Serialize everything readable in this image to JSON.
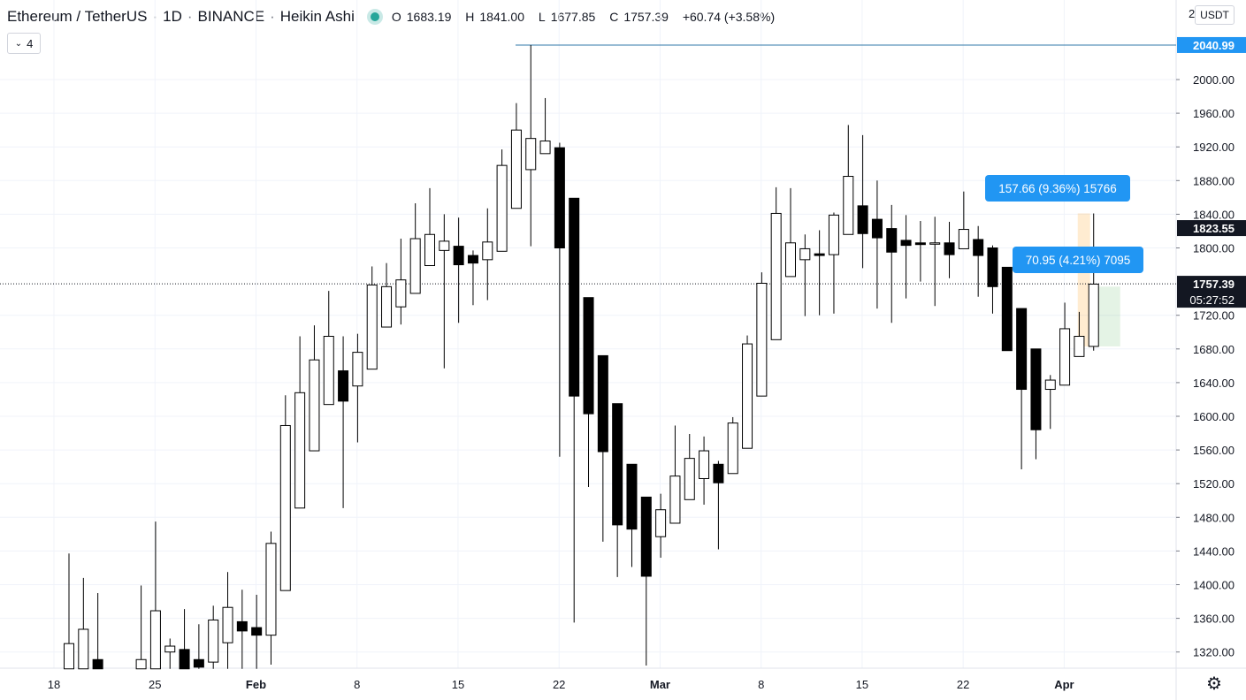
{
  "header": {
    "symbol": "Ethereum / TetherUS",
    "interval": "1D",
    "exchange": "BINANCE",
    "chart_style": "Heikin Ashi",
    "o_label": "O",
    "o_value": "1683.19",
    "h_label": "H",
    "h_value": "1841.00",
    "l_label": "L",
    "l_value": "1677.85",
    "c_label": "C",
    "c_value": "1757.39",
    "change": "+60.74 (+3.58%)"
  },
  "collapse_count": "4",
  "currency_button": "USDT",
  "colors": {
    "grid": "#f0f3fa",
    "line": "#2196f3",
    "label_blue": "#2196f3",
    "up_fill": "#ffffff",
    "down_fill": "#000000",
    "border": "#000000"
  },
  "measure_labels": {
    "upper": "157.66 (9.36%) 15766",
    "lower": "70.95 (4.21%) 7095"
  },
  "chart_data": {
    "type": "candlestick",
    "ylim": [
      1300,
      2070
    ],
    "yticks": [
      "2000.00",
      "1960.00",
      "1920.00",
      "1880.00",
      "1840.00",
      "1800.00",
      "1720.00",
      "1680.00",
      "1640.00",
      "1600.00",
      "1560.00",
      "1520.00",
      "1480.00",
      "1440.00",
      "1400.00",
      "1360.00",
      "1320.00"
    ],
    "xticks": [
      {
        "day": 1,
        "label": "18"
      },
      {
        "day": 8,
        "label": "25"
      },
      {
        "day": 15,
        "label": "Feb"
      },
      {
        "day": 22,
        "label": "8"
      },
      {
        "day": 29,
        "label": "15"
      },
      {
        "day": 36,
        "label": "22"
      },
      {
        "day": 43,
        "label": "Mar"
      },
      {
        "day": 50,
        "label": "8"
      },
      {
        "day": 57,
        "label": "15"
      },
      {
        "day": 64,
        "label": "22"
      },
      {
        "day": 71,
        "label": "Apr"
      }
    ],
    "horizontal_line": {
      "value": 2040.99,
      "label": "2040.99"
    },
    "price_labels": [
      {
        "value": 1823.55,
        "label": "1823.55"
      },
      {
        "value": 1757.39,
        "label": "1757.39",
        "countdown": "05:27:52"
      }
    ],
    "truncated_top_label": "2",
    "candles": [
      [
        1,
        1300,
        1330,
        1300,
        1437
      ],
      [
        2,
        1300,
        1347,
        1300,
        1408
      ],
      [
        3,
        1311,
        1300,
        1300,
        1390
      ],
      [
        6,
        1300,
        1311,
        1300,
        1399
      ],
      [
        7,
        1300,
        1369,
        1300,
        1475
      ],
      [
        8,
        1320,
        1327,
        1300,
        1336
      ],
      [
        9,
        1323,
        1300,
        1300,
        1371
      ],
      [
        10,
        1311,
        1302,
        1300,
        1353
      ],
      [
        11,
        1308,
        1358,
        1300,
        1375
      ],
      [
        12,
        1331,
        1373,
        1300,
        1415
      ],
      [
        13,
        1356,
        1345,
        1300,
        1394
      ],
      [
        14,
        1349,
        1340,
        1300,
        1388
      ],
      [
        15,
        1340,
        1449,
        1305,
        1463
      ],
      [
        16,
        1393,
        1589,
        1393,
        1625
      ],
      [
        17,
        1491,
        1628,
        1491,
        1695
      ],
      [
        18,
        1559,
        1667,
        1559,
        1708
      ],
      [
        19,
        1614,
        1695,
        1614,
        1749
      ],
      [
        20,
        1654,
        1618,
        1491,
        1695
      ],
      [
        21,
        1636,
        1676,
        1569,
        1698
      ],
      [
        22,
        1656,
        1756,
        1656,
        1778
      ],
      [
        23,
        1706,
        1754,
        1706,
        1782
      ],
      [
        24,
        1730,
        1762,
        1709,
        1811
      ],
      [
        25,
        1746,
        1811,
        1746,
        1853
      ],
      [
        26,
        1779,
        1816,
        1779,
        1871
      ],
      [
        27,
        1797,
        1808,
        1657,
        1840
      ],
      [
        28,
        1802,
        1780,
        1711,
        1836
      ],
      [
        29,
        1791,
        1782,
        1732,
        1797
      ],
      [
        30,
        1786,
        1807,
        1738,
        1847
      ],
      [
        31,
        1796,
        1898,
        1796,
        1917
      ],
      [
        32,
        1847,
        1940,
        1847,
        1972
      ],
      [
        33,
        1893,
        1930,
        1802,
        2041
      ],
      [
        34,
        1912,
        1927,
        1912,
        1978
      ],
      [
        35,
        1919,
        1800,
        1552,
        1925
      ],
      [
        36,
        1859,
        1624,
        1355,
        1859
      ],
      [
        37,
        1741,
        1603,
        1516,
        1741
      ],
      [
        38,
        1672,
        1558,
        1451,
        1672
      ],
      [
        39,
        1615,
        1471,
        1409,
        1615
      ],
      [
        40,
        1543,
        1466,
        1421,
        1543
      ],
      [
        41,
        1504,
        1410,
        1304,
        1504
      ],
      [
        42,
        1457,
        1489,
        1432,
        1508
      ],
      [
        43,
        1473,
        1529,
        1473,
        1589
      ],
      [
        44,
        1501,
        1550,
        1501,
        1579
      ],
      [
        45,
        1526,
        1559,
        1495,
        1576
      ],
      [
        46,
        1543,
        1521,
        1442,
        1547
      ],
      [
        47,
        1532,
        1592,
        1532,
        1599
      ],
      [
        48,
        1562,
        1686,
        1562,
        1696
      ],
      [
        49,
        1624,
        1758,
        1624,
        1771
      ],
      [
        50,
        1691,
        1841,
        1691,
        1872
      ],
      [
        51,
        1766,
        1806,
        1766,
        1871
      ],
      [
        52,
        1786,
        1799,
        1719,
        1816
      ],
      [
        53,
        1793,
        1791,
        1720,
        1821
      ],
      [
        54,
        1792,
        1839,
        1722,
        1842
      ],
      [
        55,
        1816,
        1885,
        1816,
        1946
      ],
      [
        56,
        1850,
        1817,
        1776,
        1934
      ],
      [
        57,
        1834,
        1812,
        1728,
        1880
      ],
      [
        58,
        1823,
        1795,
        1711,
        1851
      ],
      [
        59,
        1809,
        1803,
        1740,
        1839
      ],
      [
        60,
        1806,
        1804,
        1760,
        1832
      ],
      [
        61,
        1805,
        1806,
        1731,
        1837
      ],
      [
        62,
        1806,
        1792,
        1764,
        1831
      ],
      [
        63,
        1799,
        1822,
        1799,
        1867
      ],
      [
        64,
        1810,
        1791,
        1742,
        1826
      ],
      [
        65,
        1800,
        1754,
        1722,
        1803
      ],
      [
        66,
        1777,
        1678,
        1678,
        1777
      ],
      [
        67,
        1728,
        1632,
        1537,
        1728
      ],
      [
        68,
        1680,
        1584,
        1549,
        1680
      ],
      [
        69,
        1632,
        1643,
        1585,
        1649
      ],
      [
        70,
        1637,
        1704,
        1637,
        1735
      ],
      [
        71,
        1671,
        1695,
        1671,
        1724
      ],
      [
        72,
        1683,
        1757,
        1678,
        1841
      ]
    ],
    "current_price": 1757.39
  }
}
